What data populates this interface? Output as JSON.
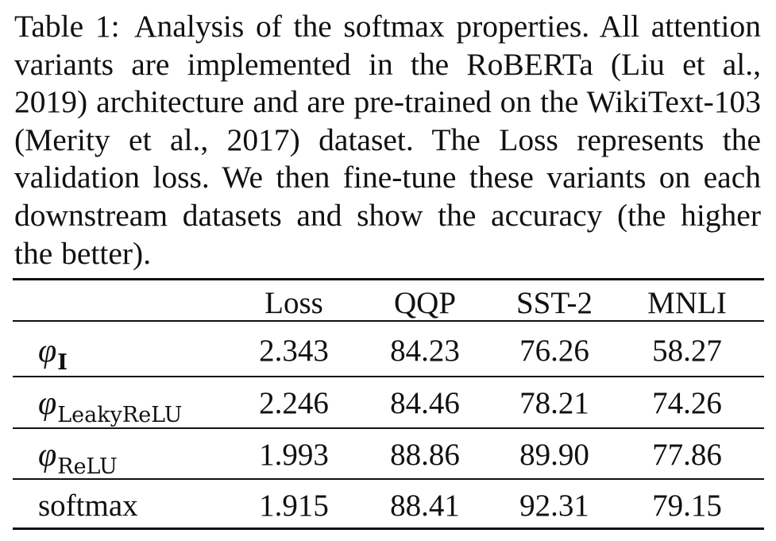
{
  "caption": {
    "label": "Table 1:",
    "text": "Analysis of the softmax properties. All attention variants are implemented in the RoBERTa (Liu et al., 2019) architecture and are pre-trained on the WikiText-103 (Merity et al., 2017) dataset. The Loss represents the validation loss. We then fine-tune these variants on each downstream datasets and show the accuracy (the higher the better)."
  },
  "table": {
    "headers": [
      "",
      "Loss",
      "QQP",
      "SST-2",
      "MNLI"
    ],
    "rows": [
      {
        "symbol": "φ",
        "subscript": "I",
        "values": [
          "2.343",
          "84.23",
          "76.26",
          "58.27"
        ]
      },
      {
        "symbol": "φ",
        "subscript": "LeakyReLU",
        "values": [
          "2.246",
          "84.46",
          "78.21",
          "74.26"
        ]
      },
      {
        "symbol": "φ",
        "subscript": "ReLU",
        "values": [
          "1.993",
          "88.86",
          "89.90",
          "77.86"
        ]
      },
      {
        "name": "softmax",
        "values": [
          "1.915",
          "88.41",
          "92.31",
          "79.15"
        ]
      }
    ]
  }
}
